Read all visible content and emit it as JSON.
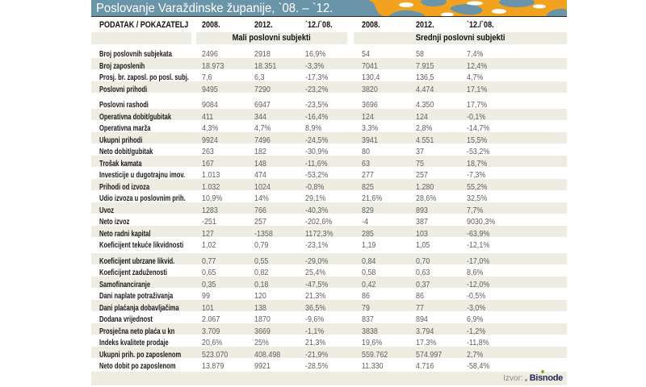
{
  "title_bar": {
    "title": "Poslovanje Varaždinske županije, `08. – `12."
  },
  "chart_data": {
    "type": "table",
    "title": "Poslovanje Varaždinske županije, `08. – `12.",
    "columns": [
      "PODATAK / POKAZATELJ",
      "2008.",
      "2012.",
      "`12./`08.",
      "2008.",
      "2012.",
      "`12./`08."
    ],
    "column_groups": [
      "Mali poslovni subjekti",
      "Srednji poslovni subjekti"
    ],
    "rows": [
      [
        "Broj poslovnih subjekata",
        "2496",
        "2918",
        "16,9%",
        "54",
        "58",
        "7,4%"
      ],
      [
        "Broj zaposlenih",
        "18.973",
        "18.351",
        "-3,3%",
        "7041",
        "7.915",
        "12,4%"
      ],
      [
        "Prosj. br. zaposl. po posl. subj.",
        "7,6",
        "6,3",
        "-17,3%",
        "130,4",
        "136,5",
        "4,7%"
      ],
      [
        "Poslovni prihodi",
        "9495",
        "7290",
        "-23,2%",
        "3820",
        "4.474",
        "17,1%"
      ],
      [
        "Poslovni rashodi",
        "9084",
        "6947",
        "-23,5%",
        "3696",
        "4.350",
        "17,7%"
      ],
      [
        "Operativna dobit/gubitak",
        "411",
        "344",
        "-16,4%",
        "124",
        "124",
        "-0,1%"
      ],
      [
        "Operativna marža",
        "4,3%",
        "4,7%",
        "8,9%",
        "3,3%",
        "2,8%",
        "-14,7%"
      ],
      [
        "Ukupni prihodi",
        "9924",
        "7496",
        "-24,5%",
        "3941",
        "4.551",
        "15,5%"
      ],
      [
        "Neto dobit/gubitak",
        "263",
        "182",
        "-30,9%",
        "80",
        "37",
        "-53,2%"
      ],
      [
        "Trošak kamata",
        "167",
        "148",
        "-11,6%",
        "63",
        "75",
        "18,7%"
      ],
      [
        "Investicije u dugotrajnu imov.",
        "1.013",
        "474",
        "-53,2%",
        "277",
        "257",
        "-7,3%"
      ],
      [
        "Prihodi od izvoza",
        "1.032",
        "1024",
        "-0,8%",
        "825",
        "1.280",
        "55,2%"
      ],
      [
        "Udio izvoza u poslovnim prih.",
        "10,9%",
        "14%",
        "29,1%",
        "21,6%",
        "28,6%",
        "32,5%"
      ],
      [
        "Uvoz",
        "1283",
        "766",
        "-40,3%",
        "829",
        "893",
        "7,7%"
      ],
      [
        "Neto izvoz",
        "-251",
        "257",
        "-202,6%",
        "-4",
        "387",
        "9030,3%"
      ],
      [
        "Neto radni kapital",
        "127",
        "-1358",
        "1172,3%",
        "285",
        "103",
        "-63,9%"
      ],
      [
        "Koeficijent tekuće likvidnosti",
        "1,02",
        "0,79",
        "-23,1%",
        "1,19",
        "1,05",
        "-12,1%"
      ],
      [
        "Koeficijent ubrzane likvid.",
        "0,77",
        "0,55",
        "-29,0%",
        "0,84",
        "0,70",
        "-17,0%"
      ],
      [
        "Koeficijent zaduženosti",
        "0,65",
        "0,82",
        "25,4%",
        "0,58",
        "0,63",
        "8,6%"
      ],
      [
        "Samofinanciranje",
        "0,35",
        "0,18",
        "-47,5%",
        "0,42",
        "0,37",
        "-12,0%"
      ],
      [
        "Dani naplate potraživanja",
        "99",
        "120",
        "21,3%",
        "86",
        "86",
        "-0,5%"
      ],
      [
        "Dani plaćanja dobavljačima",
        "101",
        "138",
        "36,5%",
        "79",
        "77",
        "-3,0%"
      ],
      [
        "Dodana vrijednost",
        "2.067",
        "1870",
        "-9,6%",
        "837",
        "894",
        "6,9%"
      ],
      [
        "Prosječna neto plaća u kn",
        "3.709",
        "3669",
        "-1,1%",
        "3838",
        "3.794",
        "-1,2%"
      ],
      [
        "Indeks kvalitete prodaje",
        "20,6%",
        "25%",
        "21,3%",
        "19,6%",
        "17,3%",
        "-11,8%"
      ],
      [
        "Ukupni prih. po zaposlenom",
        "523.070",
        "408.498",
        "-21,9%",
        "559.762",
        "574.997",
        "2,7%"
      ],
      [
        "Neto dobit po zaposlenom",
        "13.879",
        "9921",
        "-28,5%",
        "11.330",
        "4.716",
        "-58,4%"
      ]
    ],
    "row_group_breaks": [
      4,
      17
    ],
    "source": "Bisnode"
  },
  "footer": {
    "source_label": "Izvor:",
    "source_name": "Bisnode"
  },
  "colors": {
    "title_bar_blue": "#6A94A8",
    "pattern_orange": "#F2A21F",
    "row_stripe_beige": "#EFEDE1",
    "logo_green": "#76B82A",
    "logo_navy": "#1B2550",
    "header_text": "#111111",
    "value_text": "#5E5E5E"
  }
}
